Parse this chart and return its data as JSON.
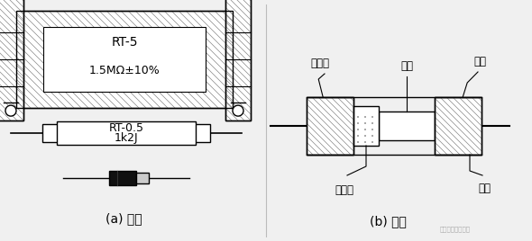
{
  "bg_color": "#f0f0f0",
  "title_a": "(a) 外形",
  "title_b": "(b) 结构",
  "label_baohuqi": "保护漆",
  "label_cigun": "瓷棒",
  "label_mangai": "帽盖",
  "label_tanmoceng": "碳膜层",
  "label_yinxian": "引线",
  "rt5_text": "RT-5",
  "rt5_val": "1.5MΩ±10%",
  "rt05_text": "RT-0.5",
  "rt05_val": "1k2J",
  "watermark": "硬货淣电子设计图"
}
